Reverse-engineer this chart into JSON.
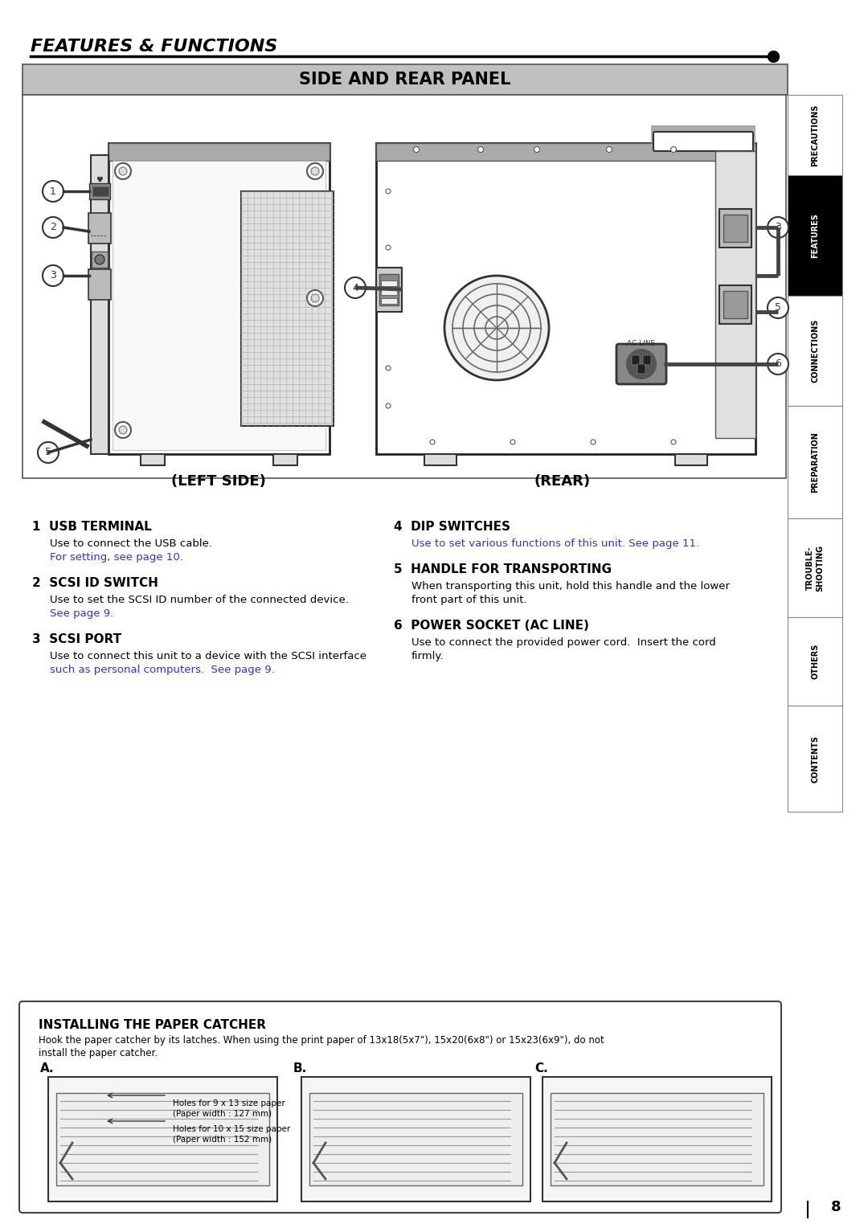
{
  "page_bg": "#ffffff",
  "header_title": "FEATURES & FUNCTIONS",
  "section_title": "SIDE AND REAR PANEL",
  "section_bg": "#c0c0c0",
  "left_label": "(LEFT SIDE)",
  "right_label": "(REAR)",
  "items_left": [
    {
      "num": "1",
      "title": "USB TERMINAL",
      "body": [
        "Use to connect the USB cable.",
        "For setting, see page 10."
      ],
      "link_lines": [
        1
      ]
    },
    {
      "num": "2",
      "title": "SCSI ID SWITCH",
      "body": [
        "Use to set the SCSI ID number of the connected device.",
        "See page 9."
      ],
      "link_lines": [
        1
      ]
    },
    {
      "num": "3",
      "title": "SCSI PORT",
      "body": [
        "Use to connect this unit to a device with the SCSI interface",
        "such as personal computers.  See page 9."
      ],
      "link_lines": [
        1
      ]
    }
  ],
  "items_right": [
    {
      "num": "4",
      "title": "DIP SWITCHES",
      "body": [
        "Use to set various functions of this unit. See page 11."
      ],
      "link_lines": [
        0
      ]
    },
    {
      "num": "5",
      "title": "HANDLE FOR TRANSPORTING",
      "body": [
        "When transporting this unit, hold this handle and the lower",
        "front part of this unit."
      ],
      "link_lines": []
    },
    {
      "num": "6",
      "title": "POWER SOCKET (AC LINE)",
      "body": [
        "Use to connect the provided power cord.  Insert the cord",
        "firmly."
      ],
      "link_lines": []
    }
  ],
  "tab_labels": [
    "PRECAUTIONS",
    "FEATURES",
    "CONNECTIONS",
    "PREPARATION",
    "TROUBLE-\nSHOOTING",
    "OTHERS",
    "CONTENTS"
  ],
  "tab_active": 1,
  "page_num": "8",
  "install_title": "INSTALLING THE PAPER CATCHER",
  "install_text1": "Hook the paper catcher by its latches. When using the print paper of 13x18(5x7\"), 15x20(6x8\") or 15x23(6x9\"), do not",
  "install_text2": "install the paper catcher.",
  "annot_a1": "Holes for 9 x 13 size paper",
  "annot_a2": "(Paper width : 127 mm)",
  "annot_a3": "Holes for 10 x 15 size paper",
  "annot_a4": "(Paper width : 152 mm)",
  "link_color": "#3333cc",
  "text_color": "#000000",
  "gray_line": "#888888"
}
